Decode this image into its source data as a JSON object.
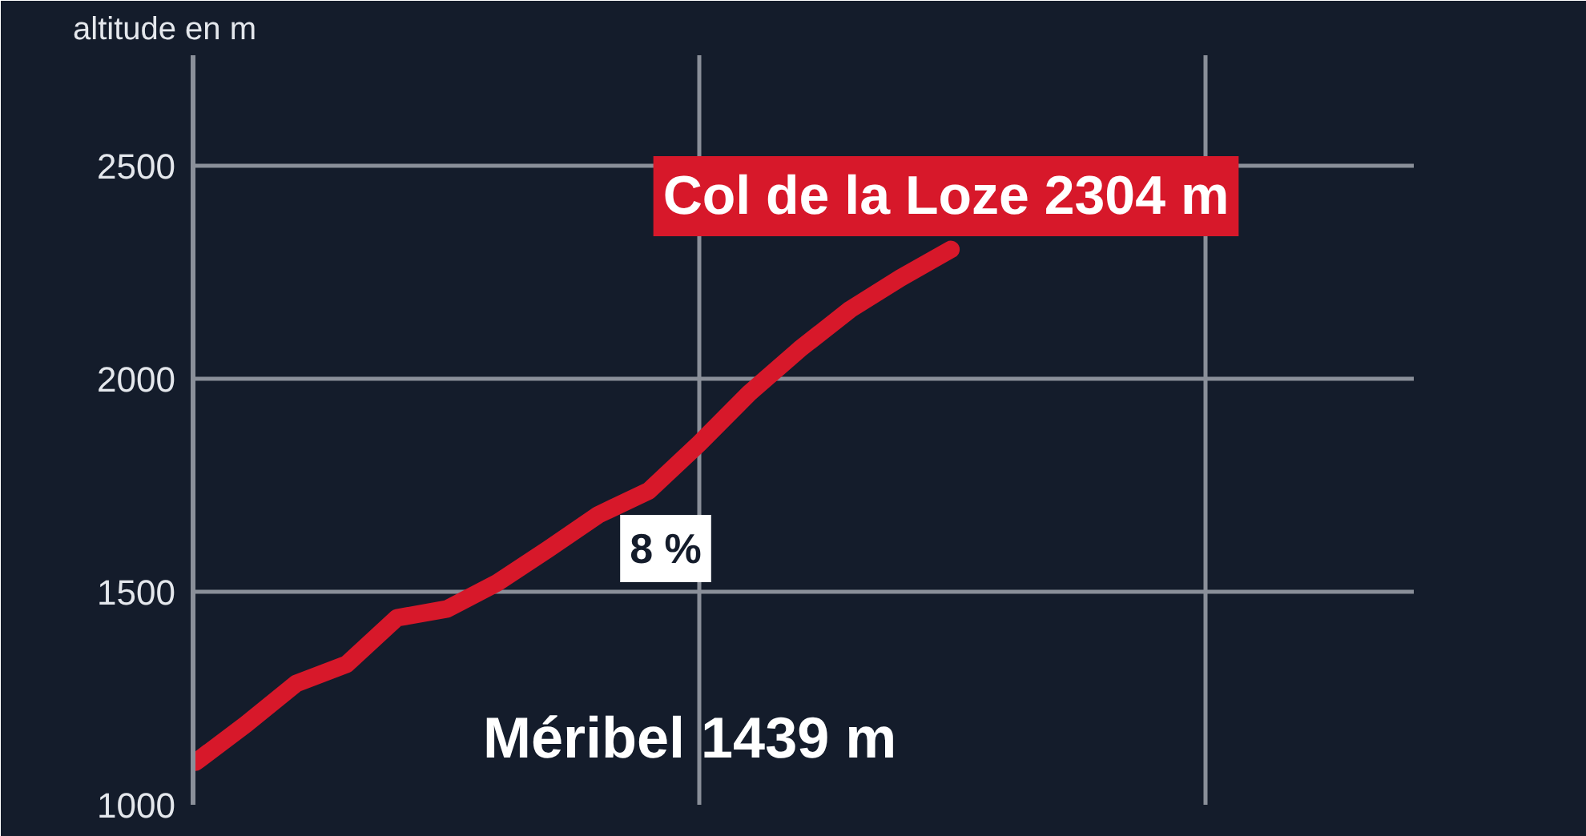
{
  "chart_data": {
    "type": "line",
    "ylabel": "altitude en m",
    "categories": [
      null,
      null,
      null,
      null,
      null,
      null,
      null,
      null,
      null,
      null,
      null,
      null,
      null,
      null,
      null,
      null
    ],
    "series": [
      {
        "color": "#d7182a",
        "values": [
          1100,
          1189,
          1285,
          1330,
          1439,
          1460,
          1522,
          1600,
          1681,
          1737,
          1848,
          1967,
          2070,
          2163,
          2237,
          2304
        ]
      }
    ],
    "ylim": [
      1000,
      2760
    ],
    "yticks": [
      1000,
      1500,
      2000,
      2500
    ],
    "tick_labels": "y",
    "grid": true,
    "annotations": [
      "Col de la Loze 2304 m",
      "8 %",
      "Méribel 1439 m"
    ]
  }
}
